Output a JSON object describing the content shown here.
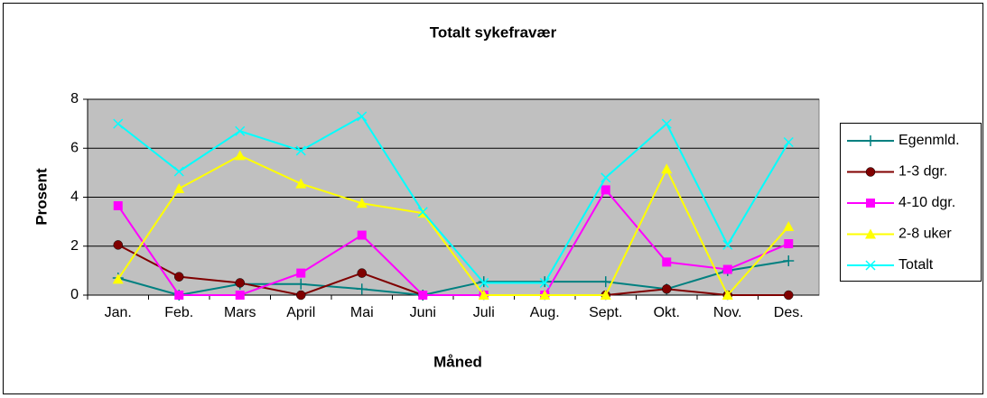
{
  "chart_data": {
    "type": "line",
    "title": "Totalt sykefravær",
    "x_label": "Måned",
    "y_label": "Prosent",
    "categories": [
      "Jan.",
      "Feb.",
      "Mars",
      "April",
      "Mai",
      "Juni",
      "Juli",
      "Aug.",
      "Sept.",
      "Okt.",
      "Nov.",
      "Des."
    ],
    "series": [
      {
        "name": "Egenmld.",
        "color": "#008080",
        "marker": "plus",
        "values": [
          0.7,
          0,
          0.45,
          0.45,
          0.25,
          0,
          0.55,
          0.55,
          0.55,
          0.25,
          1.0,
          1.4
        ]
      },
      {
        "name": "1-3 dgr.",
        "color": "#800000",
        "marker": "circle",
        "values": [
          2.05,
          0.75,
          0.5,
          0,
          0.9,
          0,
          0,
          0,
          0,
          0.25,
          0,
          0
        ]
      },
      {
        "name": "4-10 dgr.",
        "color": "#FF00FF",
        "marker": "square",
        "values": [
          3.65,
          0,
          0,
          0.9,
          2.45,
          0,
          0,
          0,
          4.3,
          1.35,
          1.05,
          2.1
        ]
      },
      {
        "name": "2-8 uker",
        "color": "#FFFF00",
        "marker": "triangle",
        "values": [
          0.65,
          4.35,
          5.7,
          4.55,
          3.75,
          3.35,
          0,
          0,
          0,
          5.15,
          0,
          2.8
        ]
      },
      {
        "name": "Totalt",
        "color": "#00FFFF",
        "marker": "x",
        "values": [
          7.0,
          5.05,
          6.7,
          5.9,
          7.3,
          3.4,
          0.5,
          0.5,
          4.8,
          7.0,
          2.05,
          6.25
        ]
      }
    ],
    "ylim": [
      0,
      8
    ],
    "yticks": [
      0,
      2,
      4,
      6,
      8
    ],
    "grid": true,
    "legend": "right"
  }
}
